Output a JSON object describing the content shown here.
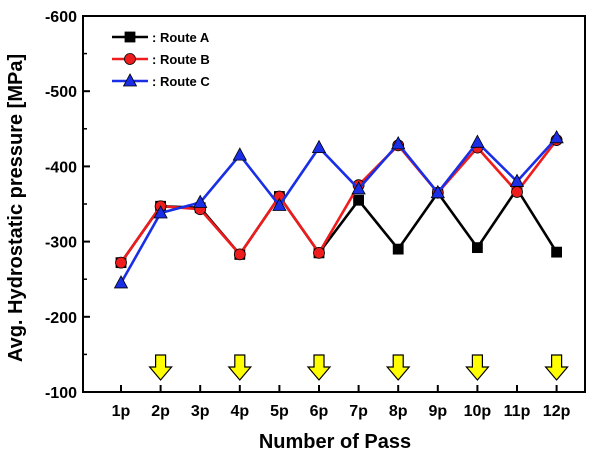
{
  "chart_data": {
    "type": "line",
    "xlabel": "Number of Pass",
    "ylabel": "Avg. Hydrostatic pressure [MPa]",
    "categories": [
      "1p",
      "2p",
      "3p",
      "4p",
      "5p",
      "6p",
      "7p",
      "8p",
      "9p",
      "10p",
      "11p",
      "12p"
    ],
    "ylim": [
      -100,
      -600
    ],
    "yticks": [
      "-100",
      "-200",
      "-300",
      "-400",
      "-500",
      "-600"
    ],
    "grid": false,
    "legend_position": "top-left",
    "series": [
      {
        "name": ": Route A",
        "color": "#000000",
        "marker": "square",
        "values": [
          -272,
          -347,
          -345,
          -283,
          -360,
          -285,
          -355,
          -290,
          -365,
          -292,
          -370,
          -286
        ]
      },
      {
        "name": ": Route B",
        "color": "#ee1c1c",
        "marker": "circle",
        "values": [
          -272,
          -347,
          -343,
          -283,
          -360,
          -285,
          -375,
          -428,
          -365,
          -425,
          -366,
          -435
        ]
      },
      {
        "name": ": Route C",
        "color": "#1a2ee6",
        "marker": "triangle",
        "values": [
          -245,
          -338,
          -352,
          -415,
          -348,
          -425,
          -370,
          -430,
          -365,
          -432,
          -380,
          -438
        ]
      }
    ],
    "annotation_arrows": {
      "marker": "down-arrow",
      "color": "#ffff00",
      "categories": [
        "2p",
        "4p",
        "6p",
        "8p",
        "10p",
        "12p"
      ]
    }
  }
}
